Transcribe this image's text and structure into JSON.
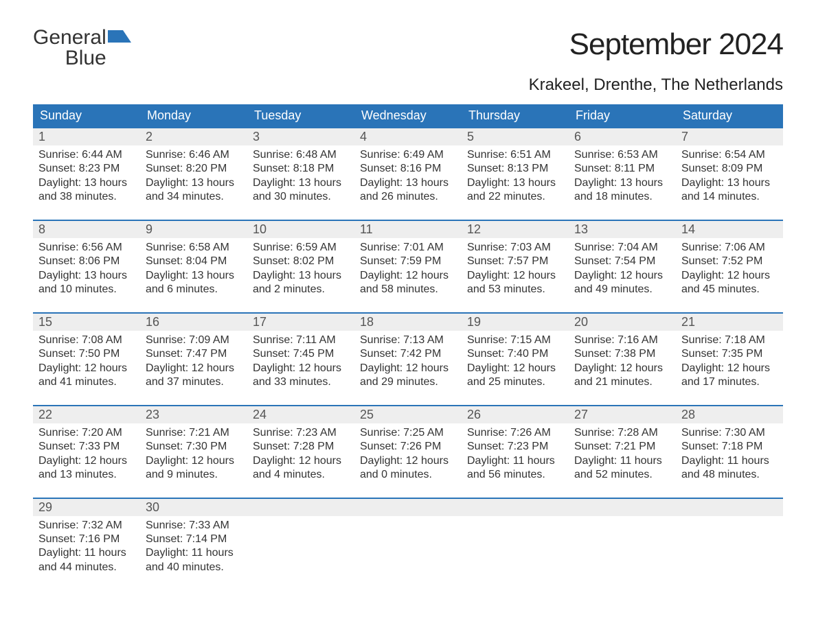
{
  "logo": {
    "text1": "General",
    "text2": "Blue"
  },
  "title": "September 2024",
  "location": "Krakeel, Drenthe, The Netherlands",
  "colors": {
    "header_bg": "#2a74b8",
    "header_text": "#ffffff",
    "daynum_bg": "#eeeeee",
    "border": "#2a74b8",
    "body_text": "#333333",
    "page_bg": "#ffffff"
  },
  "weekdays": [
    "Sunday",
    "Monday",
    "Tuesday",
    "Wednesday",
    "Thursday",
    "Friday",
    "Saturday"
  ],
  "weeks": [
    {
      "days": [
        {
          "n": "1",
          "sunrise": "Sunrise: 6:44 AM",
          "sunset": "Sunset: 8:23 PM",
          "d1": "Daylight: 13 hours",
          "d2": "and 38 minutes."
        },
        {
          "n": "2",
          "sunrise": "Sunrise: 6:46 AM",
          "sunset": "Sunset: 8:20 PM",
          "d1": "Daylight: 13 hours",
          "d2": "and 34 minutes."
        },
        {
          "n": "3",
          "sunrise": "Sunrise: 6:48 AM",
          "sunset": "Sunset: 8:18 PM",
          "d1": "Daylight: 13 hours",
          "d2": "and 30 minutes."
        },
        {
          "n": "4",
          "sunrise": "Sunrise: 6:49 AM",
          "sunset": "Sunset: 8:16 PM",
          "d1": "Daylight: 13 hours",
          "d2": "and 26 minutes."
        },
        {
          "n": "5",
          "sunrise": "Sunrise: 6:51 AM",
          "sunset": "Sunset: 8:13 PM",
          "d1": "Daylight: 13 hours",
          "d2": "and 22 minutes."
        },
        {
          "n": "6",
          "sunrise": "Sunrise: 6:53 AM",
          "sunset": "Sunset: 8:11 PM",
          "d1": "Daylight: 13 hours",
          "d2": "and 18 minutes."
        },
        {
          "n": "7",
          "sunrise": "Sunrise: 6:54 AM",
          "sunset": "Sunset: 8:09 PM",
          "d1": "Daylight: 13 hours",
          "d2": "and 14 minutes."
        }
      ]
    },
    {
      "days": [
        {
          "n": "8",
          "sunrise": "Sunrise: 6:56 AM",
          "sunset": "Sunset: 8:06 PM",
          "d1": "Daylight: 13 hours",
          "d2": "and 10 minutes."
        },
        {
          "n": "9",
          "sunrise": "Sunrise: 6:58 AM",
          "sunset": "Sunset: 8:04 PM",
          "d1": "Daylight: 13 hours",
          "d2": "and 6 minutes."
        },
        {
          "n": "10",
          "sunrise": "Sunrise: 6:59 AM",
          "sunset": "Sunset: 8:02 PM",
          "d1": "Daylight: 13 hours",
          "d2": "and 2 minutes."
        },
        {
          "n": "11",
          "sunrise": "Sunrise: 7:01 AM",
          "sunset": "Sunset: 7:59 PM",
          "d1": "Daylight: 12 hours",
          "d2": "and 58 minutes."
        },
        {
          "n": "12",
          "sunrise": "Sunrise: 7:03 AM",
          "sunset": "Sunset: 7:57 PM",
          "d1": "Daylight: 12 hours",
          "d2": "and 53 minutes."
        },
        {
          "n": "13",
          "sunrise": "Sunrise: 7:04 AM",
          "sunset": "Sunset: 7:54 PM",
          "d1": "Daylight: 12 hours",
          "d2": "and 49 minutes."
        },
        {
          "n": "14",
          "sunrise": "Sunrise: 7:06 AM",
          "sunset": "Sunset: 7:52 PM",
          "d1": "Daylight: 12 hours",
          "d2": "and 45 minutes."
        }
      ]
    },
    {
      "days": [
        {
          "n": "15",
          "sunrise": "Sunrise: 7:08 AM",
          "sunset": "Sunset: 7:50 PM",
          "d1": "Daylight: 12 hours",
          "d2": "and 41 minutes."
        },
        {
          "n": "16",
          "sunrise": "Sunrise: 7:09 AM",
          "sunset": "Sunset: 7:47 PM",
          "d1": "Daylight: 12 hours",
          "d2": "and 37 minutes."
        },
        {
          "n": "17",
          "sunrise": "Sunrise: 7:11 AM",
          "sunset": "Sunset: 7:45 PM",
          "d1": "Daylight: 12 hours",
          "d2": "and 33 minutes."
        },
        {
          "n": "18",
          "sunrise": "Sunrise: 7:13 AM",
          "sunset": "Sunset: 7:42 PM",
          "d1": "Daylight: 12 hours",
          "d2": "and 29 minutes."
        },
        {
          "n": "19",
          "sunrise": "Sunrise: 7:15 AM",
          "sunset": "Sunset: 7:40 PM",
          "d1": "Daylight: 12 hours",
          "d2": "and 25 minutes."
        },
        {
          "n": "20",
          "sunrise": "Sunrise: 7:16 AM",
          "sunset": "Sunset: 7:38 PM",
          "d1": "Daylight: 12 hours",
          "d2": "and 21 minutes."
        },
        {
          "n": "21",
          "sunrise": "Sunrise: 7:18 AM",
          "sunset": "Sunset: 7:35 PM",
          "d1": "Daylight: 12 hours",
          "d2": "and 17 minutes."
        }
      ]
    },
    {
      "days": [
        {
          "n": "22",
          "sunrise": "Sunrise: 7:20 AM",
          "sunset": "Sunset: 7:33 PM",
          "d1": "Daylight: 12 hours",
          "d2": "and 13 minutes."
        },
        {
          "n": "23",
          "sunrise": "Sunrise: 7:21 AM",
          "sunset": "Sunset: 7:30 PM",
          "d1": "Daylight: 12 hours",
          "d2": "and 9 minutes."
        },
        {
          "n": "24",
          "sunrise": "Sunrise: 7:23 AM",
          "sunset": "Sunset: 7:28 PM",
          "d1": "Daylight: 12 hours",
          "d2": "and 4 minutes."
        },
        {
          "n": "25",
          "sunrise": "Sunrise: 7:25 AM",
          "sunset": "Sunset: 7:26 PM",
          "d1": "Daylight: 12 hours",
          "d2": "and 0 minutes."
        },
        {
          "n": "26",
          "sunrise": "Sunrise: 7:26 AM",
          "sunset": "Sunset: 7:23 PM",
          "d1": "Daylight: 11 hours",
          "d2": "and 56 minutes."
        },
        {
          "n": "27",
          "sunrise": "Sunrise: 7:28 AM",
          "sunset": "Sunset: 7:21 PM",
          "d1": "Daylight: 11 hours",
          "d2": "and 52 minutes."
        },
        {
          "n": "28",
          "sunrise": "Sunrise: 7:30 AM",
          "sunset": "Sunset: 7:18 PM",
          "d1": "Daylight: 11 hours",
          "d2": "and 48 minutes."
        }
      ]
    },
    {
      "days": [
        {
          "n": "29",
          "sunrise": "Sunrise: 7:32 AM",
          "sunset": "Sunset: 7:16 PM",
          "d1": "Daylight: 11 hours",
          "d2": "and 44 minutes."
        },
        {
          "n": "30",
          "sunrise": "Sunrise: 7:33 AM",
          "sunset": "Sunset: 7:14 PM",
          "d1": "Daylight: 11 hours",
          "d2": "and 40 minutes."
        },
        {
          "n": "",
          "sunrise": "",
          "sunset": "",
          "d1": "",
          "d2": ""
        },
        {
          "n": "",
          "sunrise": "",
          "sunset": "",
          "d1": "",
          "d2": ""
        },
        {
          "n": "",
          "sunrise": "",
          "sunset": "",
          "d1": "",
          "d2": ""
        },
        {
          "n": "",
          "sunrise": "",
          "sunset": "",
          "d1": "",
          "d2": ""
        },
        {
          "n": "",
          "sunrise": "",
          "sunset": "",
          "d1": "",
          "d2": ""
        }
      ]
    }
  ]
}
